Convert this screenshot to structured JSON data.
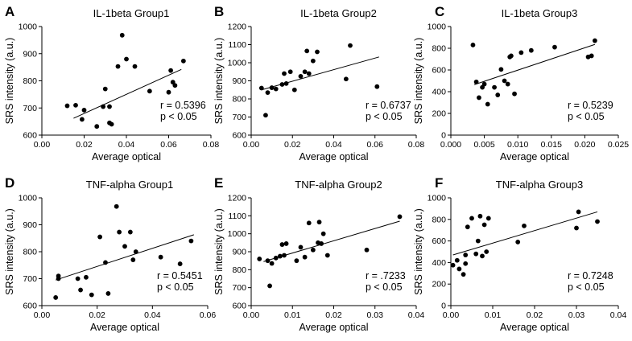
{
  "chart_data": [
    {
      "type": "scatter",
      "panel": "A",
      "title": "IL-1beta Group1",
      "xlabel": "Average optical",
      "ylabel": "SRS intensity (a.u.)",
      "xlim": [
        0,
        0.08
      ],
      "ylim": [
        600,
        1000
      ],
      "xticks": [
        "0.00",
        "0.02",
        "0.04",
        "0.06",
        "0.08"
      ],
      "yticks": [
        "600",
        "700",
        "800",
        "900",
        "1000"
      ],
      "stats": {
        "r": "r = 0.5396",
        "p": "p < 0.05"
      },
      "fit": [
        [
          0.015,
          662
        ],
        [
          0.066,
          842
        ]
      ],
      "points": [
        [
          0.012,
          708
        ],
        [
          0.016,
          710
        ],
        [
          0.019,
          658
        ],
        [
          0.02,
          692
        ],
        [
          0.026,
          632
        ],
        [
          0.029,
          705
        ],
        [
          0.03,
          770
        ],
        [
          0.032,
          645
        ],
        [
          0.032,
          705
        ],
        [
          0.033,
          640
        ],
        [
          0.036,
          853
        ],
        [
          0.038,
          968
        ],
        [
          0.04,
          880
        ],
        [
          0.044,
          853
        ],
        [
          0.051,
          762
        ],
        [
          0.06,
          758
        ],
        [
          0.061,
          838
        ],
        [
          0.062,
          795
        ],
        [
          0.063,
          783
        ],
        [
          0.067,
          873
        ]
      ]
    },
    {
      "type": "scatter",
      "panel": "B",
      "title": "IL-1beta Group2",
      "xlabel": "Average optical",
      "ylabel": "SRS intensity (a.u.)",
      "xlim": [
        0,
        0.08
      ],
      "ylim": [
        600,
        1200
      ],
      "xticks": [
        "0.00",
        "0.02",
        "0.04",
        "0.06",
        "0.08"
      ],
      "yticks": [
        "600",
        "700",
        "800",
        "900",
        "1000",
        "1100",
        "1200"
      ],
      "stats": {
        "r": "r = 0.6737",
        "p": "p < 0.05"
      },
      "fit": [
        [
          0.005,
          850
        ],
        [
          0.062,
          1032
        ]
      ],
      "points": [
        [
          0.005,
          860
        ],
        [
          0.007,
          710
        ],
        [
          0.008,
          835
        ],
        [
          0.01,
          862
        ],
        [
          0.012,
          855
        ],
        [
          0.015,
          880
        ],
        [
          0.016,
          940
        ],
        [
          0.017,
          885
        ],
        [
          0.019,
          950
        ],
        [
          0.021,
          850
        ],
        [
          0.024,
          925
        ],
        [
          0.026,
          950
        ],
        [
          0.027,
          1065
        ],
        [
          0.028,
          940
        ],
        [
          0.03,
          1010
        ],
        [
          0.032,
          1060
        ],
        [
          0.046,
          910
        ],
        [
          0.048,
          1095
        ],
        [
          0.061,
          868
        ]
      ]
    },
    {
      "type": "scatter",
      "panel": "C",
      "title": "IL-1beta Group3",
      "xlabel": "Average optical",
      "ylabel": "SRS intensity (a.u.)",
      "xlim": [
        0,
        0.025
      ],
      "ylim": [
        0,
        1000
      ],
      "xticks": [
        "0.000",
        "0.005",
        "0.010",
        "0.015",
        "0.020",
        "0.025"
      ],
      "yticks": [
        "0",
        "200",
        "400",
        "600",
        "800",
        "1000"
      ],
      "stats": {
        "r": "r = 0.5239",
        "p": "p < 0.05"
      },
      "fit": [
        [
          0.0035,
          465
        ],
        [
          0.0215,
          835
        ]
      ],
      "points": [
        [
          0.0033,
          830
        ],
        [
          0.0038,
          490
        ],
        [
          0.0042,
          345
        ],
        [
          0.0047,
          440
        ],
        [
          0.005,
          470
        ],
        [
          0.0055,
          285
        ],
        [
          0.0065,
          440
        ],
        [
          0.007,
          370
        ],
        [
          0.0075,
          605
        ],
        [
          0.008,
          500
        ],
        [
          0.0085,
          470
        ],
        [
          0.0088,
          720
        ],
        [
          0.009,
          730
        ],
        [
          0.0095,
          380
        ],
        [
          0.0105,
          760
        ],
        [
          0.012,
          780
        ],
        [
          0.0155,
          810
        ],
        [
          0.0205,
          720
        ],
        [
          0.021,
          730
        ],
        [
          0.0215,
          870
        ]
      ]
    },
    {
      "type": "scatter",
      "panel": "D",
      "title": "TNF-alpha Group1",
      "xlabel": "Average optical",
      "ylabel": "SRS intensity (a.u.)",
      "xlim": [
        0,
        0.06
      ],
      "ylim": [
        600,
        1000
      ],
      "xticks": [
        "0.00",
        "0.02",
        "0.04",
        "0.06"
      ],
      "yticks": [
        "600",
        "700",
        "800",
        "900",
        "1000"
      ],
      "stats": {
        "r": "r = 0.5451",
        "p": "p < 0.05"
      },
      "fit": [
        [
          0.005,
          695
        ],
        [
          0.055,
          863
        ]
      ],
      "points": [
        [
          0.005,
          630
        ],
        [
          0.006,
          700
        ],
        [
          0.006,
          710
        ],
        [
          0.013,
          700
        ],
        [
          0.014,
          658
        ],
        [
          0.016,
          705
        ],
        [
          0.018,
          640
        ],
        [
          0.021,
          855
        ],
        [
          0.023,
          760
        ],
        [
          0.024,
          645
        ],
        [
          0.027,
          968
        ],
        [
          0.028,
          873
        ],
        [
          0.03,
          820
        ],
        [
          0.032,
          873
        ],
        [
          0.033,
          770
        ],
        [
          0.034,
          800
        ],
        [
          0.043,
          780
        ],
        [
          0.05,
          755
        ],
        [
          0.054,
          840
        ]
      ]
    },
    {
      "type": "scatter",
      "panel": "E",
      "title": "TNF-alpha Group2",
      "xlabel": "Average optical",
      "ylabel": "SRS intensity (a.u.)",
      "xlim": [
        0,
        0.04
      ],
      "ylim": [
        600,
        1200
      ],
      "xticks": [
        "0.00",
        "0.01",
        "0.02",
        "0.03",
        "0.04"
      ],
      "yticks": [
        "600",
        "700",
        "800",
        "900",
        "1000",
        "1100",
        "1200"
      ],
      "stats": {
        "r": "r = .7233",
        "p": "p < 0.05"
      },
      "fit": [
        [
          0.003,
          845
        ],
        [
          0.036,
          1070
        ]
      ],
      "points": [
        [
          0.002,
          860
        ],
        [
          0.004,
          850
        ],
        [
          0.0045,
          710
        ],
        [
          0.005,
          835
        ],
        [
          0.006,
          865
        ],
        [
          0.007,
          875
        ],
        [
          0.0075,
          940
        ],
        [
          0.008,
          880
        ],
        [
          0.0085,
          945
        ],
        [
          0.011,
          850
        ],
        [
          0.012,
          925
        ],
        [
          0.013,
          870
        ],
        [
          0.014,
          1060
        ],
        [
          0.015,
          910
        ],
        [
          0.0162,
          950
        ],
        [
          0.0165,
          1065
        ],
        [
          0.017,
          945
        ],
        [
          0.0175,
          1000
        ],
        [
          0.0185,
          880
        ],
        [
          0.028,
          910
        ],
        [
          0.036,
          1095
        ]
      ]
    },
    {
      "type": "scatter",
      "panel": "F",
      "title": "TNF-alpha Group3",
      "xlabel": "Average optical",
      "ylabel": "SRS intensity (a.u.)",
      "xlim": [
        0,
        0.04
      ],
      "ylim": [
        0,
        1000
      ],
      "xticks": [
        "0.00",
        "0.01",
        "0.02",
        "0.03",
        "0.04"
      ],
      "yticks": [
        "0",
        "200",
        "400",
        "600",
        "800",
        "1000"
      ],
      "stats": {
        "r": "r = 0.7248",
        "p": "p < 0.05"
      },
      "fit": [
        [
          0.0005,
          470
        ],
        [
          0.035,
          870
        ]
      ],
      "points": [
        [
          0.0005,
          375
        ],
        [
          0.0015,
          420
        ],
        [
          0.002,
          340
        ],
        [
          0.003,
          290
        ],
        [
          0.0035,
          390
        ],
        [
          0.0035,
          470
        ],
        [
          0.004,
          730
        ],
        [
          0.005,
          810
        ],
        [
          0.006,
          480
        ],
        [
          0.0065,
          600
        ],
        [
          0.007,
          830
        ],
        [
          0.0075,
          460
        ],
        [
          0.008,
          750
        ],
        [
          0.0085,
          500
        ],
        [
          0.009,
          810
        ],
        [
          0.016,
          590
        ],
        [
          0.0175,
          740
        ],
        [
          0.03,
          720
        ],
        [
          0.0305,
          870
        ],
        [
          0.035,
          780
        ]
      ]
    }
  ],
  "colors": {
    "ink": "#000000",
    "background": "#ffffff"
  }
}
